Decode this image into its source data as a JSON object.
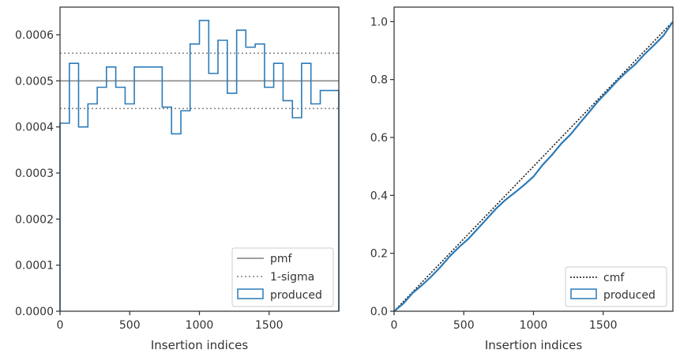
{
  "chart_data": [
    {
      "type": "line",
      "xlabel": "Insertion indices",
      "ylabel": "",
      "xlim": [
        0,
        2000
      ],
      "ylim": [
        0,
        0.00066
      ],
      "x_ticks": [
        0,
        500,
        1000,
        1500
      ],
      "x_tick_labels": [
        "0",
        "500",
        "1000",
        "1500"
      ],
      "y_ticks": [
        0,
        0.0001,
        0.0002,
        0.0003,
        0.0004,
        0.0005,
        0.0006
      ],
      "y_tick_labels": [
        "0.0000",
        "0.0001",
        "0.0002",
        "0.0003",
        "0.0004",
        "0.0005",
        "0.0006"
      ],
      "legend_position": "lower-right",
      "legend": [
        "pmf",
        "1-sigma",
        "produced"
      ],
      "pmf_value": 0.0005,
      "sigma_band": [
        0.00044,
        0.00056
      ],
      "series": [
        {
          "name": "produced",
          "kind": "step-histogram",
          "bin_edges": [
            0,
            67,
            133,
            200,
            267,
            333,
            400,
            467,
            533,
            600,
            667,
            733,
            800,
            867,
            933,
            1000,
            1067,
            1133,
            1200,
            1267,
            1333,
            1400,
            1467,
            1533,
            1600,
            1667,
            1733,
            1800,
            1867,
            1933,
            2000
          ],
          "values": [
            0.000408,
            0.000538,
            0.0004,
            0.00045,
            0.000486,
            0.00053,
            0.000486,
            0.00045,
            0.00053,
            0.00053,
            0.00053,
            0.000443,
            0.000385,
            0.000435,
            0.00058,
            0.000631,
            0.000516,
            0.000588,
            0.000473,
            0.00061,
            0.000573,
            0.00058,
            0.000486,
            0.000538,
            0.000457,
            0.00042,
            0.000538,
            0.00045,
            0.000479,
            0.000479
          ]
        }
      ],
      "colors": {
        "pmf": "#808080",
        "sigma": "#808080",
        "produced": "#2b7bb9"
      }
    },
    {
      "type": "line",
      "xlabel": "Insertion indices",
      "ylabel": "",
      "xlim": [
        0,
        2000
      ],
      "ylim": [
        0,
        1.05
      ],
      "x_ticks": [
        0,
        500,
        1000,
        1500
      ],
      "x_tick_labels": [
        "0",
        "500",
        "1000",
        "1500"
      ],
      "y_ticks": [
        0,
        0.2,
        0.4,
        0.6,
        0.8,
        1.0
      ],
      "y_tick_labels": [
        "0.0",
        "0.2",
        "0.4",
        "0.6",
        "0.8",
        "1.0"
      ],
      "legend_position": "lower-right",
      "legend": [
        "cmf",
        "produced"
      ],
      "series": [
        {
          "name": "cmf",
          "x": [
            0,
            2000
          ],
          "y": [
            0,
            1.0
          ]
        },
        {
          "name": "produced",
          "x": [
            0,
            67,
            133,
            200,
            267,
            333,
            400,
            467,
            533,
            600,
            667,
            733,
            800,
            867,
            933,
            1000,
            1067,
            1133,
            1200,
            1267,
            1333,
            1400,
            1467,
            1533,
            1600,
            1667,
            1733,
            1800,
            1867,
            1933,
            2000
          ],
          "y": [
            0,
            0.027,
            0.063,
            0.09,
            0.12,
            0.153,
            0.19,
            0.222,
            0.25,
            0.285,
            0.32,
            0.355,
            0.385,
            0.41,
            0.436,
            0.465,
            0.506,
            0.54,
            0.579,
            0.611,
            0.65,
            0.688,
            0.727,
            0.76,
            0.795,
            0.826,
            0.854,
            0.889,
            0.92,
            0.952,
            1.0
          ]
        }
      ],
      "colors": {
        "cmf": "#111111",
        "produced": "#2b7bb9"
      }
    }
  ]
}
